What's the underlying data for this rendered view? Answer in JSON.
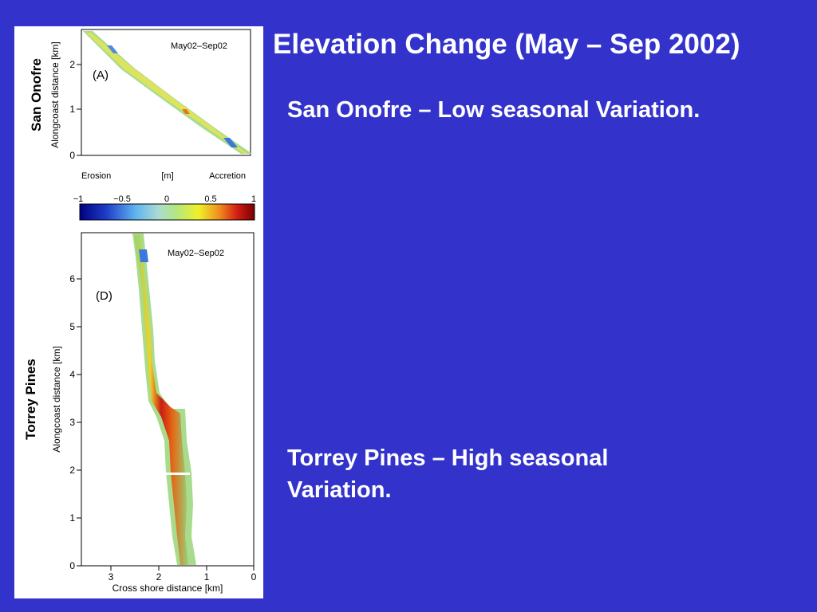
{
  "slide": {
    "title": "Elevation Change (May – Sep 2002)",
    "caption_top": "San Onofre – Low seasonal Variation.",
    "caption_bottom": "Torrey Pines – High seasonal Variation."
  },
  "colors": {
    "background": "#3333cc",
    "text": "#ffffff"
  },
  "figure": {
    "panel_a": {
      "site": "San Onofre",
      "ylabel": "Alongcoast distance [km]",
      "tag": "(A)",
      "period": "May02–Sep02",
      "yticks": [
        "0",
        "1",
        "2"
      ]
    },
    "colorbar": {
      "left_label": "Erosion",
      "unit_label": "[m]",
      "right_label": "Accretion",
      "ticks": [
        "−1",
        "−0.5",
        "0",
        "0.5",
        "1"
      ]
    },
    "panel_d": {
      "site": "Torrey Pines",
      "ylabel": "Alongcoast distance [km]",
      "tag": "(D)",
      "period": "May02–Sep02",
      "yticks": [
        "0",
        "1",
        "2",
        "3",
        "4",
        "5",
        "6"
      ],
      "xticks": [
        "3",
        "2",
        "1",
        "0"
      ],
      "xlabel": "Cross shore distance [km]"
    }
  }
}
